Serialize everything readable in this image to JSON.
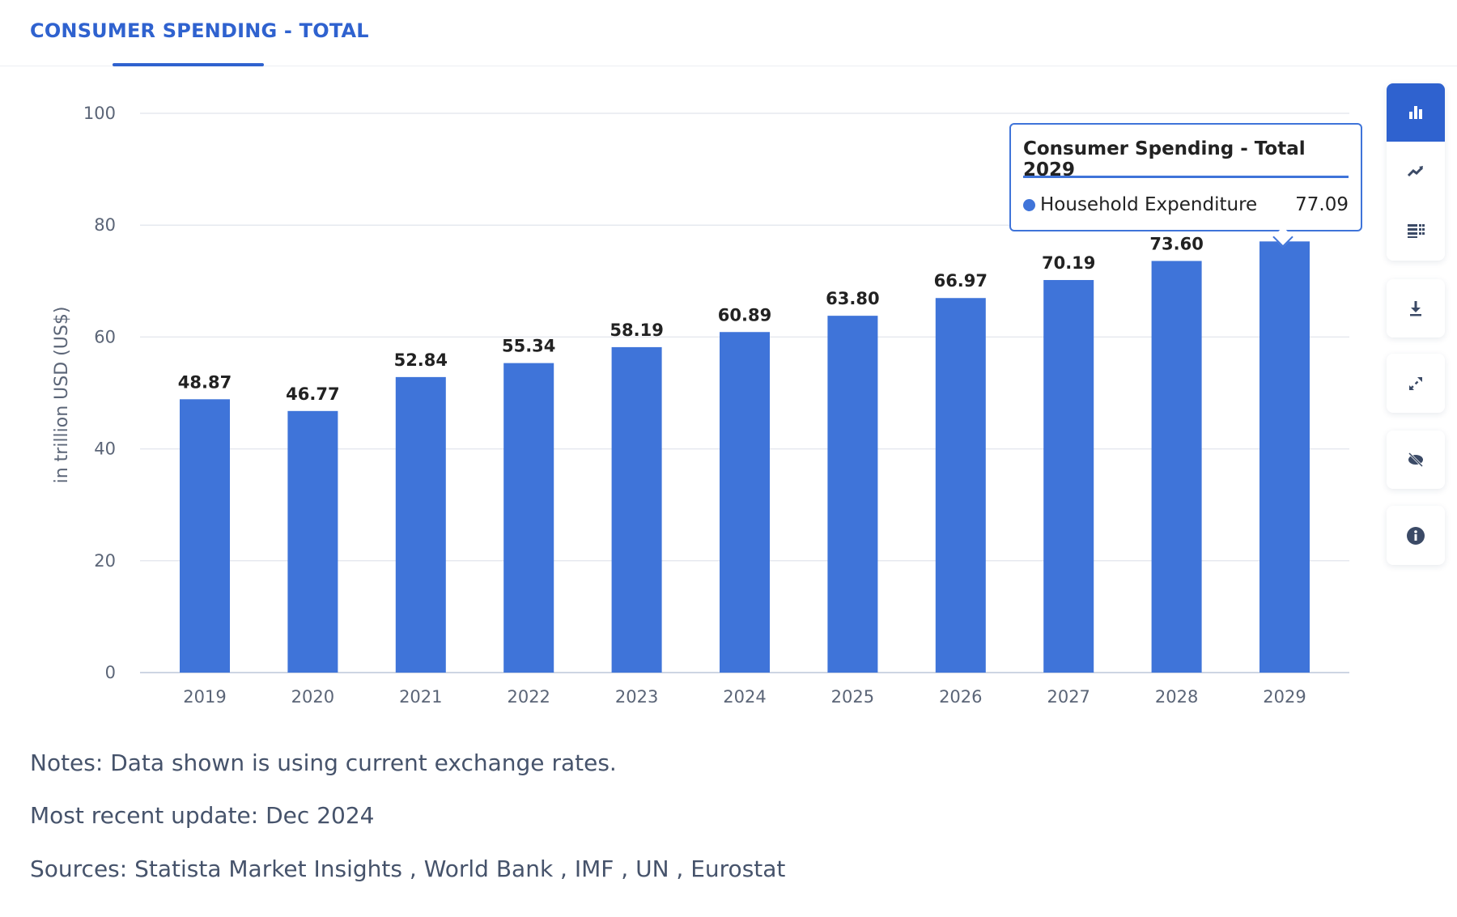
{
  "header": {
    "tab_label": "CONSUMER SPENDING - TOTAL"
  },
  "chart_data": {
    "type": "bar",
    "categories": [
      "2019",
      "2020",
      "2021",
      "2022",
      "2023",
      "2024",
      "2025",
      "2026",
      "2027",
      "2028",
      "2029"
    ],
    "values": [
      48.87,
      46.77,
      52.84,
      55.34,
      58.19,
      60.89,
      63.8,
      66.97,
      70.19,
      73.6,
      77.09
    ],
    "data_labels": [
      "48.87",
      "46.77",
      "52.84",
      "55.34",
      "58.19",
      "60.89",
      "63.80",
      "66.97",
      "70.19",
      "73.60",
      "77.09"
    ],
    "series": [
      {
        "name": "Household Expenditure",
        "values": [
          48.87,
          46.77,
          52.84,
          55.34,
          58.19,
          60.89,
          63.8,
          66.97,
          70.19,
          73.6,
          77.09
        ]
      }
    ],
    "ylabel": "in trillion USD (US$)",
    "ylim": [
      0,
      100
    ],
    "yticks": [
      "0",
      "20",
      "40",
      "60",
      "80",
      "100"
    ],
    "grid": true,
    "colors": {
      "bar": "#3f74d9",
      "accent": "#2f62cf"
    }
  },
  "tooltip": {
    "title": "Consumer Spending - Total 2029",
    "series": "Household Expenditure",
    "value": "77.09"
  },
  "toolbar": {
    "icons": [
      "bar-chart-icon",
      "line-chart-icon",
      "table-icon",
      "download-icon",
      "expand-icon",
      "hide-icon",
      "info-icon"
    ]
  },
  "notes": {
    "note": "Notes: Data shown is using current exchange rates.",
    "update": "Most recent update: Dec 2024",
    "sources": "Sources: Statista Market Insights , World Bank , IMF , UN , Eurostat"
  }
}
